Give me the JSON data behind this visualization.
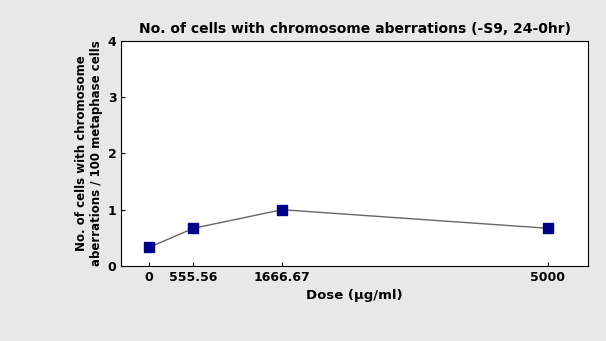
{
  "title": "No. of cells with chromosome aberrations (-S9, 24-0hr)",
  "xlabel": "Dose (μg/ml)",
  "ylabel": "No. of cells with chromosome\naberrations / 100 metaphase cells",
  "x_values": [
    0,
    555.56,
    1666.67,
    5000
  ],
  "y_values": [
    0.33,
    0.67,
    1.0,
    0.67
  ],
  "x_tick_labels": [
    "0",
    "555.56",
    "1666.67",
    "5000"
  ],
  "ylim": [
    0,
    4
  ],
  "yticks": [
    0,
    1,
    2,
    3,
    4
  ],
  "xlim": [
    -350,
    5500
  ],
  "marker": "s",
  "marker_color": "#00008B",
  "line_color": "#666666",
  "marker_size": 7,
  "line_width": 1.0,
  "title_fontsize": 10,
  "label_fontsize": 9.5,
  "ylabel_fontsize": 8.5,
  "tick_fontsize": 9,
  "background_color": "#e8e8e8",
  "plot_bg_color": "#ffffff"
}
